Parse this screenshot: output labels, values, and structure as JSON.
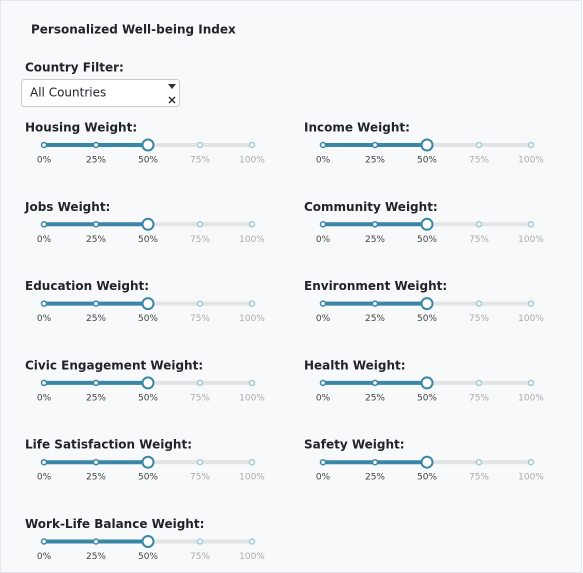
{
  "title": "Personalized Well-being Index",
  "country_filter": {
    "label": "Country Filter:",
    "value": "All Countries"
  },
  "marks": [
    {
      "value": 0,
      "label": "0%"
    },
    {
      "value": 25,
      "label": "25%"
    },
    {
      "value": 50,
      "label": "50%"
    },
    {
      "value": 75,
      "label": "75%"
    },
    {
      "value": 100,
      "label": "100%"
    }
  ],
  "sliders": [
    {
      "label": "Housing Weight:",
      "value": 50
    },
    {
      "label": "Income Weight:",
      "value": 50
    },
    {
      "label": "Jobs Weight:",
      "value": 50
    },
    {
      "label": "Community Weight:",
      "value": 50
    },
    {
      "label": "Education Weight:",
      "value": 50
    },
    {
      "label": "Environment Weight:",
      "value": 50
    },
    {
      "label": "Civic Engagement Weight:",
      "value": 50
    },
    {
      "label": "Health Weight:",
      "value": 50
    },
    {
      "label": "Life Satisfaction Weight:",
      "value": 50
    },
    {
      "label": "Safety Weight:",
      "value": 50
    },
    {
      "label": "Work-Life Balance Weight:",
      "value": 50
    }
  ]
}
